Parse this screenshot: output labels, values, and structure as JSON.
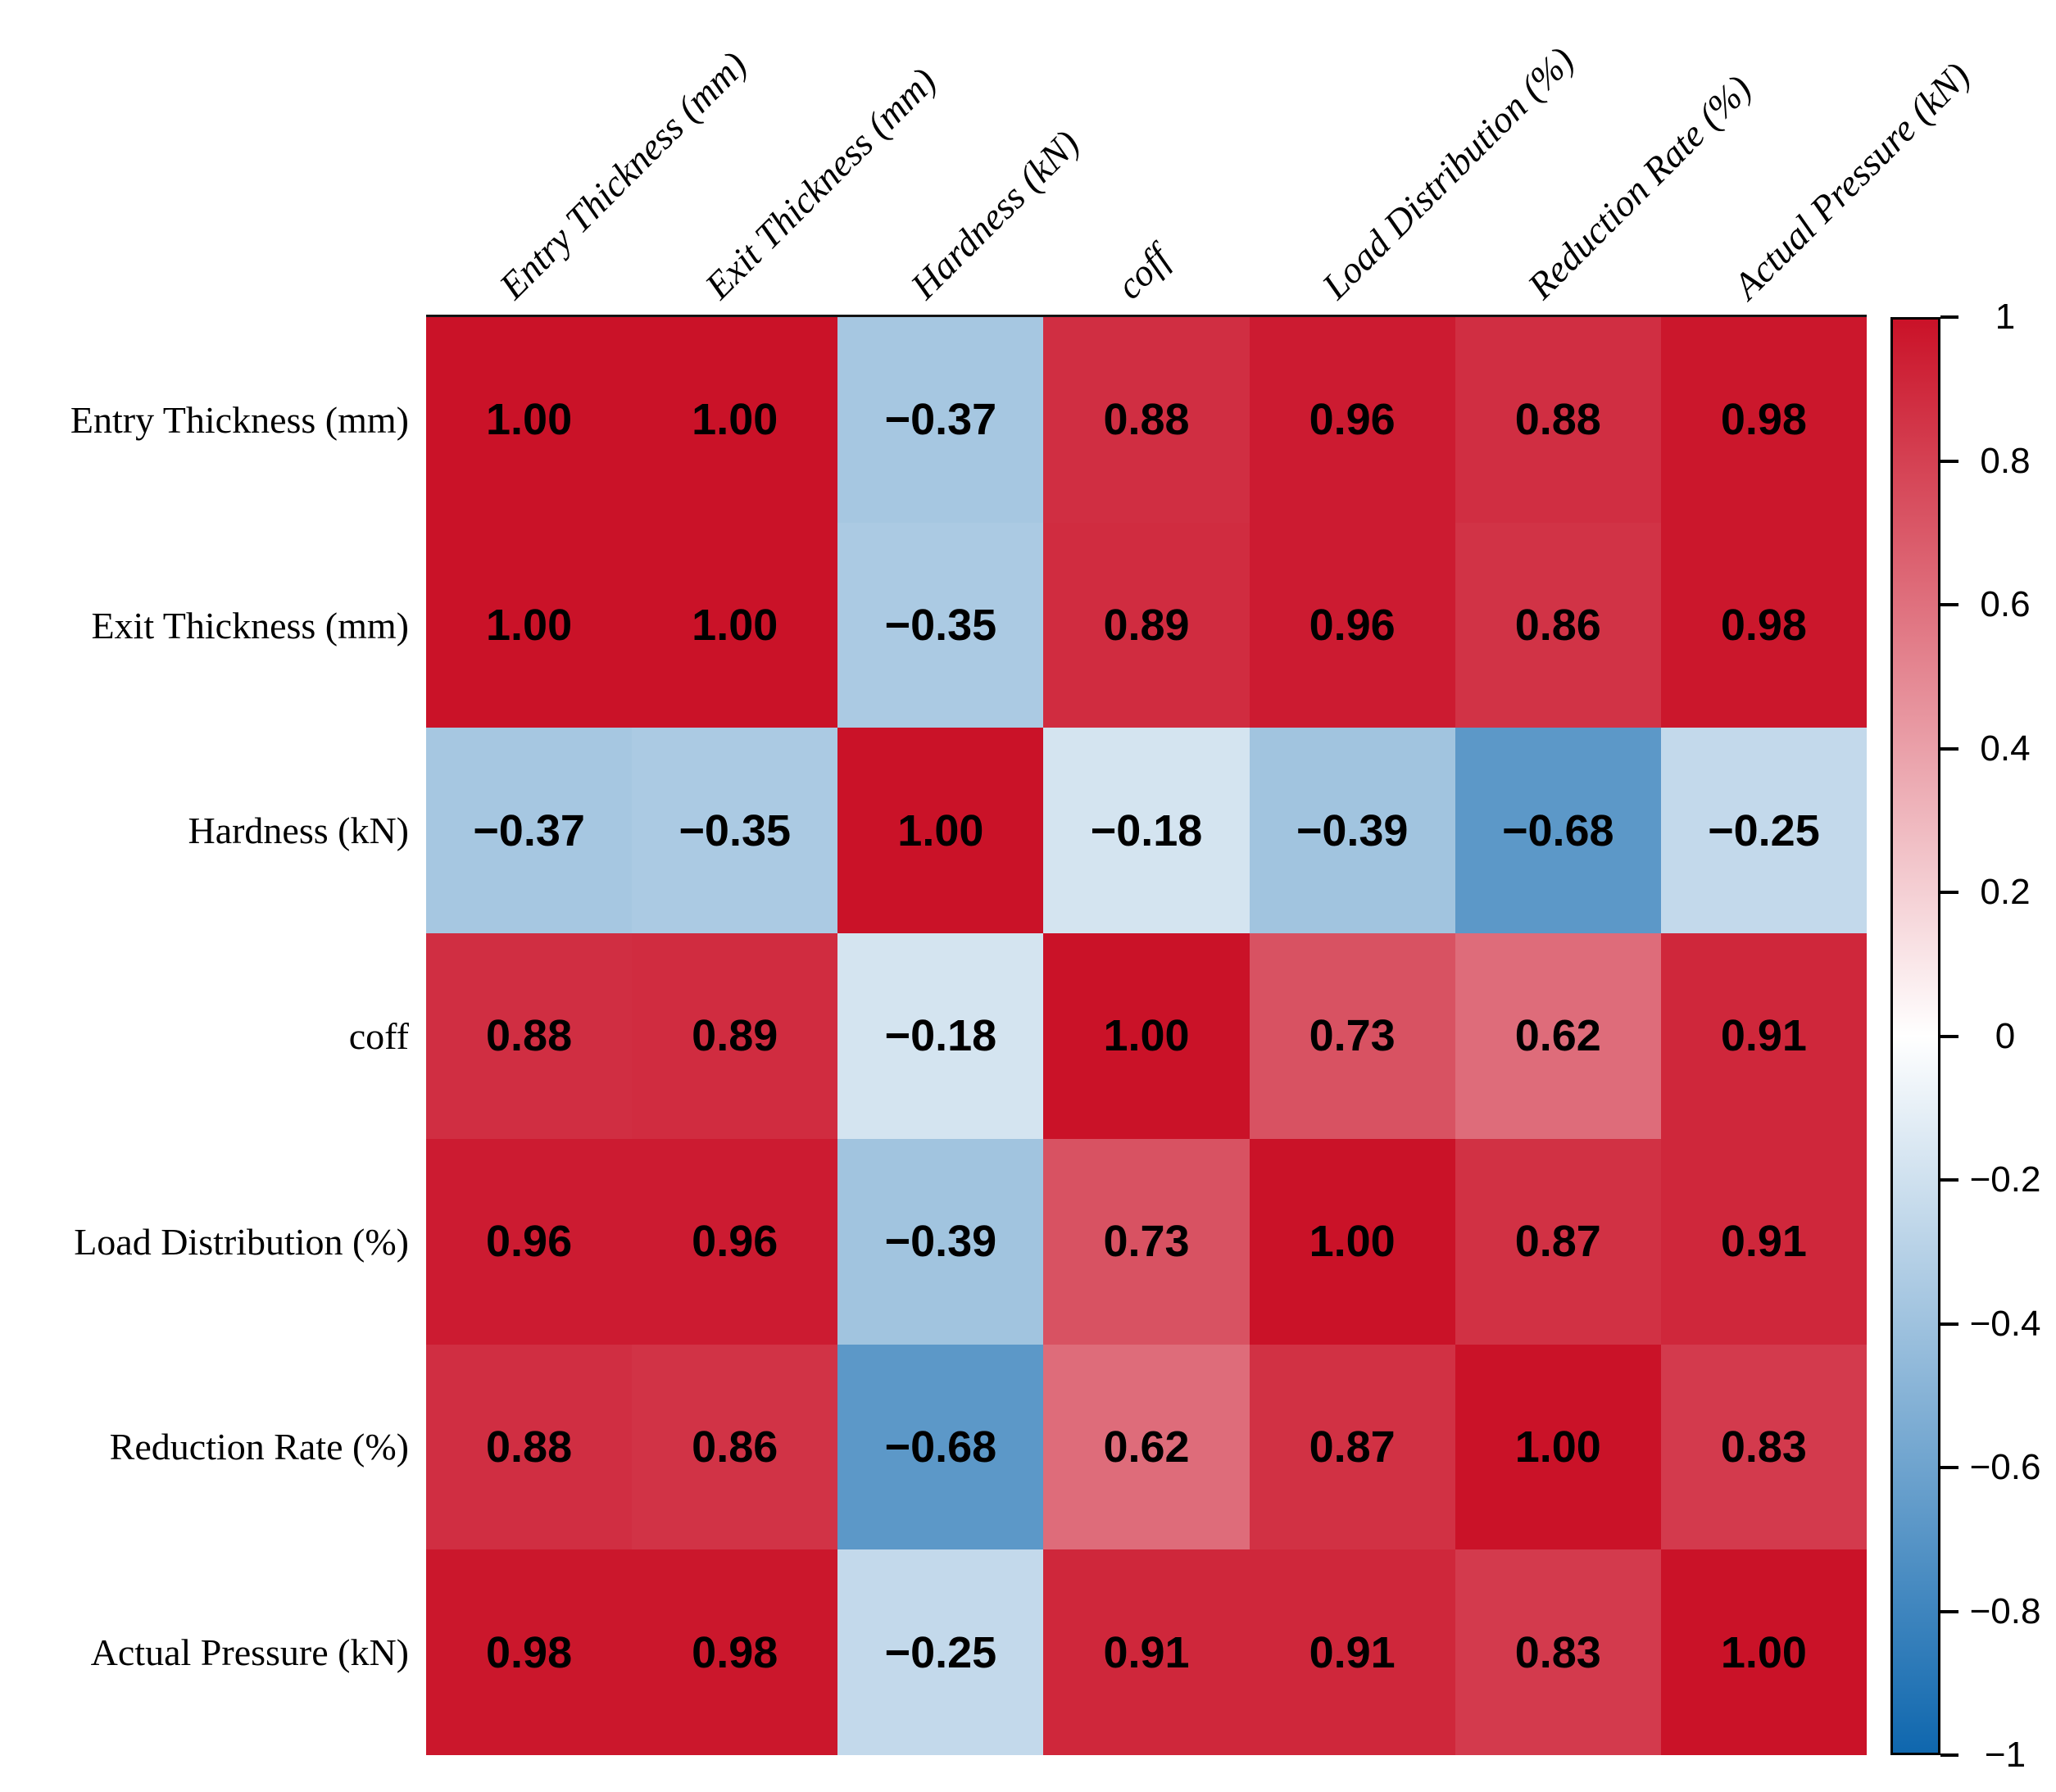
{
  "figure": {
    "background": "#FFFFFF"
  },
  "chart_data": {
    "type": "heatmap",
    "row_labels": [
      "Entry Thickness (mm)",
      "Exit Thickness (mm)",
      "Hardness (kN)",
      "coff",
      "Load Distribution (%)",
      "Reduction Rate (%)",
      "Actual Pressure (kN)"
    ],
    "col_labels": [
      "Entry Thickness (mm)",
      "Exit Thickness (mm)",
      "Hardness (kN)",
      "coff",
      "Load Distribution (%)",
      "Reduction Rate (%)",
      "Actual Pressure (kN)"
    ],
    "matrix": [
      [
        1.0,
        1.0,
        -0.37,
        0.88,
        0.96,
        0.88,
        0.98
      ],
      [
        1.0,
        1.0,
        -0.35,
        0.89,
        0.96,
        0.86,
        0.98
      ],
      [
        -0.37,
        -0.35,
        1.0,
        -0.18,
        -0.39,
        -0.68,
        -0.25
      ],
      [
        0.88,
        0.89,
        -0.18,
        1.0,
        0.73,
        0.62,
        0.91
      ],
      [
        0.96,
        0.96,
        -0.39,
        0.73,
        1.0,
        0.87,
        0.91
      ],
      [
        0.88,
        0.86,
        -0.68,
        0.62,
        0.87,
        1.0,
        0.83
      ],
      [
        0.98,
        0.98,
        -0.25,
        0.91,
        0.91,
        0.83,
        1.0
      ]
    ],
    "value_decimals": 2,
    "minus_sign": "−",
    "colorbar": {
      "vmin": -1,
      "vmax": 1,
      "tick_values": [
        1,
        0.8,
        0.6,
        0.4,
        0.2,
        0,
        -0.2,
        -0.4,
        -0.6,
        -0.8,
        -1
      ],
      "tick_labels": [
        "1",
        "0.8",
        "0.6",
        "0.4",
        "0.2",
        "0",
        "−0.2",
        "−0.4",
        "−0.6",
        "−0.8",
        "−1"
      ],
      "position": "right"
    },
    "colors": {
      "positive_max": "#CA1228",
      "midpoint": "#FFFFFF",
      "negative_max": "#0F67AE",
      "cell_text": "#000000",
      "label_text": "#000000",
      "spine": "#141414",
      "colorbar_border": "#000000"
    },
    "grid": false,
    "legend_position": "right"
  }
}
